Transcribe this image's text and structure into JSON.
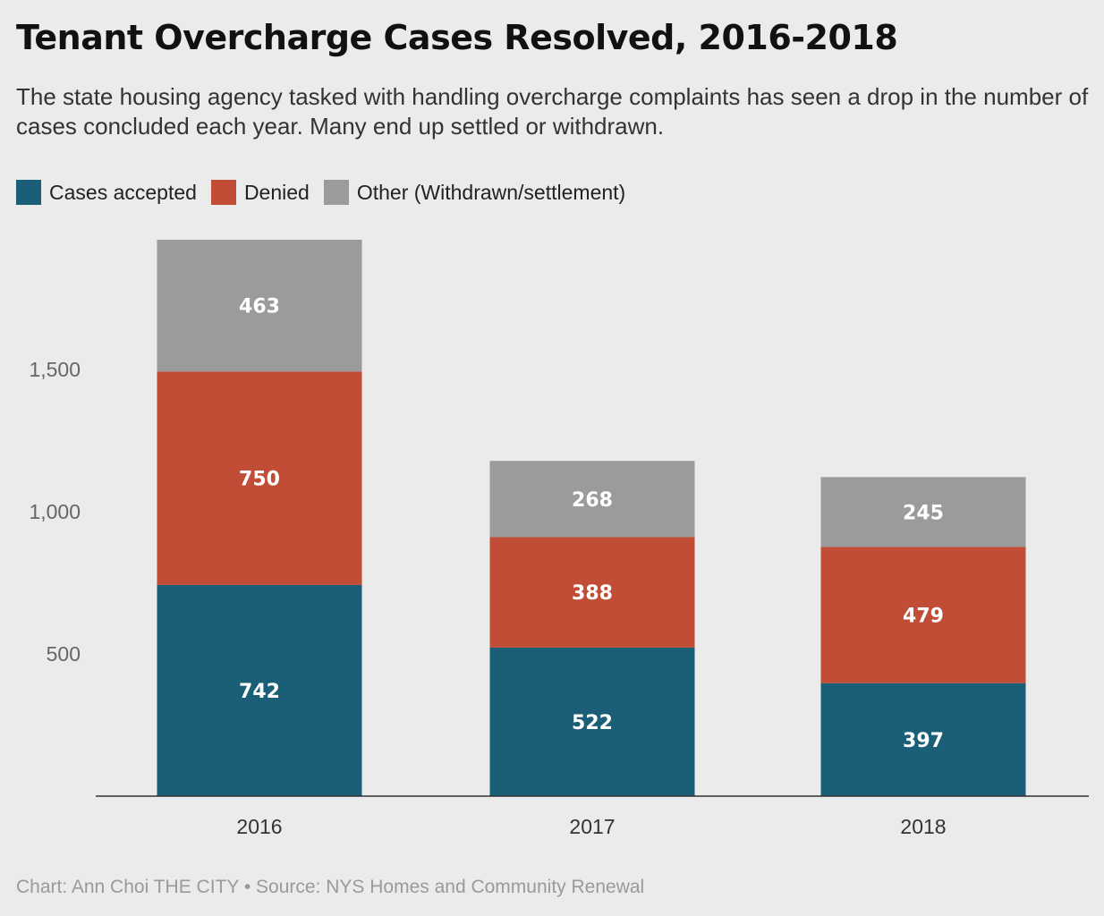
{
  "chart_data": {
    "type": "bar",
    "stacked": true,
    "title": "Tenant Overcharge Cases Resolved, 2016-2018",
    "subtitle": "The state housing agency tasked with handling overcharge complaints has seen a drop in the number of cases concluded each year. Many end up settled or withdrawn.",
    "categories": [
      "2016",
      "2017",
      "2018"
    ],
    "series": [
      {
        "name": "Cases accepted",
        "values": [
          742,
          522,
          397
        ],
        "color": "#1b5e77"
      },
      {
        "name": "Denied",
        "values": [
          750,
          388,
          479
        ],
        "color": "#c14d36"
      },
      {
        "name": "Other (Withdrawn/settlement)",
        "values": [
          463,
          268,
          245
        ],
        "color": "#9b9b9b"
      }
    ],
    "yticks": [
      500,
      1000,
      1500
    ],
    "ytick_labels": [
      "500",
      "1,000",
      "1,500"
    ],
    "ylim": [
      0,
      1955
    ],
    "grid": false,
    "legend_position": "top-left",
    "xlabel": "",
    "ylabel": "",
    "source": "Chart: Ann Choi THE CITY • Source: NYS Homes and Community Renewal",
    "colors": {
      "background": "#ebebeb",
      "axis_line": "#333333",
      "bar_label": "#ffffff",
      "tick_label": "#666666",
      "category_label": "#333333"
    }
  }
}
